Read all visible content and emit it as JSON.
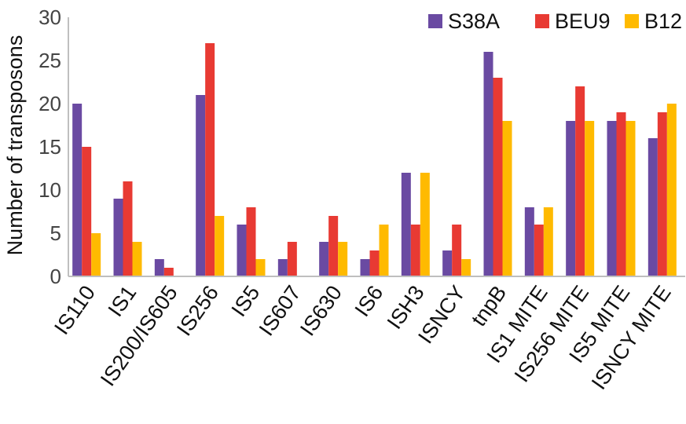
{
  "chart_data": {
    "type": "bar",
    "title": "",
    "xlabel": "",
    "ylabel": "Number of transposons",
    "ylim": [
      0,
      30
    ],
    "yticks": [
      0,
      5,
      10,
      15,
      20,
      25,
      30
    ],
    "grid": false,
    "legend_position": "top-right",
    "categories": [
      "IS110",
      "IS1",
      "IS200/IS605",
      "IS256",
      "IS5",
      "IS607",
      "IS630",
      "IS6",
      "ISH3",
      "ISNCY",
      "tnpB",
      "IS1 MITE",
      "IS256 MITE",
      "IS5 MITE",
      "ISNCY MITE"
    ],
    "series": [
      {
        "name": "S38A",
        "color": "#6a4aa2",
        "values": [
          20,
          9,
          2,
          21,
          6,
          2,
          4,
          2,
          12,
          3,
          26,
          8,
          18,
          18,
          16
        ]
      },
      {
        "name": "BEU9",
        "color": "#e83a33",
        "values": [
          15,
          11,
          1,
          27,
          8,
          4,
          7,
          3,
          6,
          6,
          23,
          6,
          22,
          19,
          19
        ]
      },
      {
        "name": "B12",
        "color": "#ffba00",
        "values": [
          5,
          4,
          0,
          7,
          2,
          0,
          4,
          6,
          12,
          2,
          18,
          8,
          18,
          18,
          20
        ]
      }
    ]
  }
}
